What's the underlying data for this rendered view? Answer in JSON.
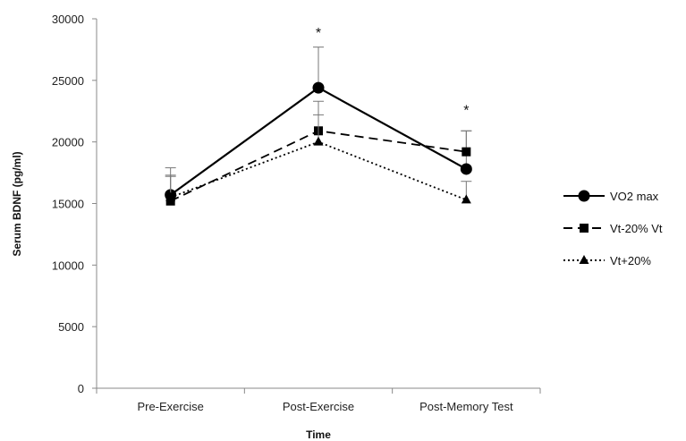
{
  "chart_data": {
    "type": "line",
    "title": "",
    "xlabel": "Time",
    "ylabel": "Serum BDNF (pg/ml)",
    "categories": [
      "Pre-Exercise",
      "Post-Exercise",
      "Post-Memory Test"
    ],
    "ylim": [
      0,
      30000
    ],
    "yticks": [
      0,
      5000,
      10000,
      15000,
      20000,
      25000,
      30000
    ],
    "grid": false,
    "legend_position": "right",
    "series": [
      {
        "name": "VO2 max",
        "values": [
          15700,
          24400,
          17800
        ],
        "error_upper": [
          2200,
          3300,
          3100
        ],
        "marker": "circle",
        "line_style": "solid",
        "color": "#000000"
      },
      {
        "name": "Vt-20% Vt",
        "values": [
          15200,
          20900,
          19200
        ],
        "error_upper": [
          2000,
          2400,
          1700
        ],
        "marker": "square",
        "line_style": "dashed",
        "color": "#000000"
      },
      {
        "name": "Vt+20%",
        "values": [
          15500,
          20000,
          15300
        ],
        "error_upper": [
          1800,
          2200,
          1500
        ],
        "marker": "triangle",
        "line_style": "dotted",
        "color": "#000000"
      }
    ],
    "annotations": [
      {
        "text": "*",
        "category": "Post-Exercise",
        "y": 29500
      },
      {
        "text": "*",
        "category": "Post-Memory Test",
        "y": 23200
      }
    ]
  }
}
